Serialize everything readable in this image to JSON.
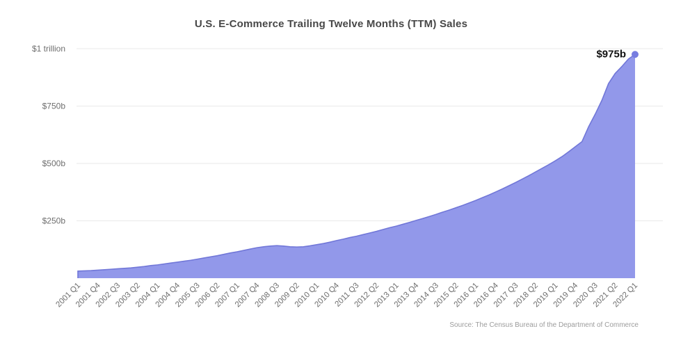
{
  "title": "U.S. E-Commerce Trailing Twelve Months (TTM) Sales",
  "source": "Source: The Census Bureau of the Department of Commerce",
  "annotation": {
    "label": "$975b",
    "value": 975
  },
  "colors": {
    "area_fill": "#9298ea",
    "area_line": "#7177d8",
    "end_dot": "#767ce0",
    "gridline": "#e9e9e9",
    "title_text": "#474747",
    "axis_text": "#6e6e6e",
    "annotation_text": "#111111",
    "source_text": "#9c9c9c",
    "background": "#ffffff"
  },
  "chart_data": {
    "type": "area",
    "title": "U.S. E-Commerce Trailing Twelve Months (TTM) Sales",
    "xlabel": "",
    "ylabel": "",
    "ylim": [
      0,
      1000
    ],
    "grid": "horizontal",
    "legend": "none",
    "y_ticks": [
      {
        "label": "$1 trillion",
        "value": 1000
      },
      {
        "label": "$750b",
        "value": 750
      },
      {
        "label": "$500b",
        "value": 500
      },
      {
        "label": "$250b",
        "value": 250
      }
    ],
    "x_tick_labels": [
      "2001 Q1",
      "2001 Q4",
      "2002 Q3",
      "2003 Q2",
      "2004 Q1",
      "2004 Q4",
      "2005 Q3",
      "2006 Q2",
      "2007 Q1",
      "2007 Q4",
      "2008 Q3",
      "2009 Q2",
      "2010 Q1",
      "2010 Q4",
      "2011 Q3",
      "2012 Q2",
      "2013 Q1",
      "2013 Q4",
      "2014 Q3",
      "2015 Q2",
      "2016 Q1",
      "2016 Q4",
      "2017 Q3",
      "2018 Q2",
      "2019 Q1",
      "2019 Q4",
      "2020 Q3",
      "2021 Q2",
      "2022 Q1"
    ],
    "x_tick_every_n_quarters": 3,
    "quarters": [
      "2001 Q1",
      "2001 Q2",
      "2001 Q3",
      "2001 Q4",
      "2002 Q1",
      "2002 Q2",
      "2002 Q3",
      "2002 Q4",
      "2003 Q1",
      "2003 Q2",
      "2003 Q3",
      "2003 Q4",
      "2004 Q1",
      "2004 Q2",
      "2004 Q3",
      "2004 Q4",
      "2005 Q1",
      "2005 Q2",
      "2005 Q3",
      "2005 Q4",
      "2006 Q1",
      "2006 Q2",
      "2006 Q3",
      "2006 Q4",
      "2007 Q1",
      "2007 Q2",
      "2007 Q3",
      "2007 Q4",
      "2008 Q1",
      "2008 Q2",
      "2008 Q3",
      "2008 Q4",
      "2009 Q1",
      "2009 Q2",
      "2009 Q3",
      "2009 Q4",
      "2010 Q1",
      "2010 Q2",
      "2010 Q3",
      "2010 Q4",
      "2011 Q1",
      "2011 Q2",
      "2011 Q3",
      "2011 Q4",
      "2012 Q1",
      "2012 Q2",
      "2012 Q3",
      "2012 Q4",
      "2013 Q1",
      "2013 Q2",
      "2013 Q3",
      "2013 Q4",
      "2014 Q1",
      "2014 Q2",
      "2014 Q3",
      "2014 Q4",
      "2015 Q1",
      "2015 Q2",
      "2015 Q3",
      "2015 Q4",
      "2016 Q1",
      "2016 Q2",
      "2016 Q3",
      "2016 Q4",
      "2017 Q1",
      "2017 Q2",
      "2017 Q3",
      "2017 Q4",
      "2018 Q1",
      "2018 Q2",
      "2018 Q3",
      "2018 Q4",
      "2019 Q1",
      "2019 Q2",
      "2019 Q3",
      "2019 Q4",
      "2020 Q1",
      "2020 Q2",
      "2020 Q3",
      "2020 Q4",
      "2021 Q1",
      "2021 Q2",
      "2021 Q3",
      "2021 Q4",
      "2022 Q1"
    ],
    "values": [
      31,
      32,
      33,
      35,
      37,
      39,
      41,
      43,
      45,
      48,
      51,
      55,
      58,
      62,
      66,
      70,
      74,
      78,
      83,
      88,
      93,
      98,
      104,
      110,
      115,
      121,
      127,
      133,
      137,
      140,
      142,
      140,
      137,
      136,
      137,
      141,
      146,
      151,
      157,
      164,
      170,
      177,
      183,
      190,
      197,
      204,
      212,
      220,
      227,
      235,
      243,
      252,
      260,
      269,
      278,
      288,
      297,
      307,
      317,
      328,
      339,
      351,
      363,
      376,
      389,
      403,
      417,
      432,
      447,
      463,
      479,
      495,
      512,
      530,
      551,
      573,
      595,
      660,
      715,
      775,
      848,
      892,
      922,
      955,
      975
    ],
    "end_point": {
      "quarter": "2022 Q1",
      "value": 975,
      "label": "$975b"
    }
  }
}
